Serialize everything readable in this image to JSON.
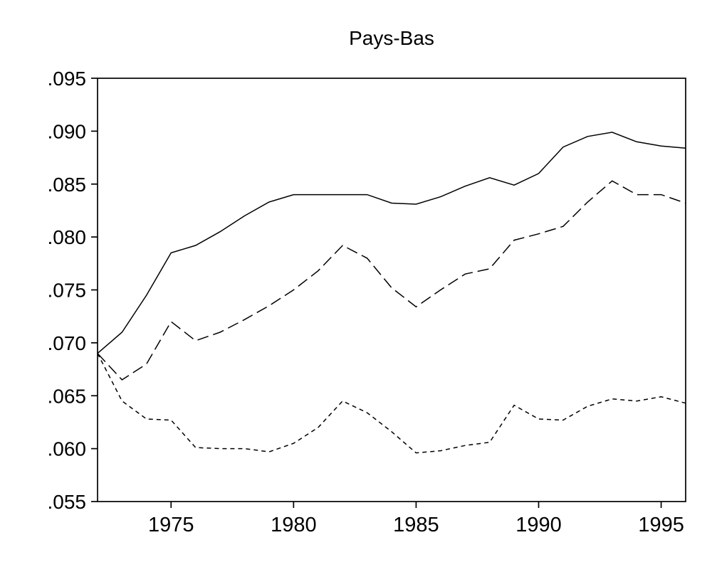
{
  "chart": {
    "title": "Pays-Bas",
    "background_color": "#ffffff"
  },
  "chart_data": {
    "type": "line",
    "title": "Pays-Bas",
    "xlabel": "",
    "ylabel": "",
    "grid": false,
    "legend": null,
    "xlim": [
      1972,
      1996
    ],
    "ylim": [
      0.055,
      0.095
    ],
    "axis_color": "#000000",
    "line_color": "#000000",
    "x_ticks": [
      1975,
      1980,
      1985,
      1990,
      1995
    ],
    "x_tick_labels": [
      "1975",
      "1980",
      "1985",
      "1990",
      "1995"
    ],
    "y_ticks": [
      0.095,
      0.09,
      0.085,
      0.08,
      0.075,
      0.07,
      0.065,
      0.06,
      0.055
    ],
    "y_tick_labels": [
      ".095",
      ".090",
      ".085",
      ".080",
      ".075",
      ".070",
      ".065",
      ".060",
      ".055"
    ],
    "x": [
      1972,
      1973,
      1974,
      1975,
      1976,
      1977,
      1978,
      1979,
      1980,
      1981,
      1982,
      1983,
      1984,
      1985,
      1986,
      1987,
      1988,
      1989,
      1990,
      1991,
      1992,
      1993,
      1994,
      1995,
      1996
    ],
    "series": [
      {
        "name": "upper-solid",
        "style": "solid",
        "values": [
          0.069,
          0.071,
          0.0745,
          0.0785,
          0.0792,
          0.0805,
          0.082,
          0.0833,
          0.084,
          0.084,
          0.084,
          0.084,
          0.0832,
          0.0831,
          0.0838,
          0.0848,
          0.0856,
          0.0849,
          0.086,
          0.0885,
          0.0895,
          0.0899,
          0.089,
          0.0886,
          0.0884
        ]
      },
      {
        "name": "middle-long-dash",
        "style": "long-dash",
        "values": [
          0.069,
          0.0665,
          0.068,
          0.072,
          0.0702,
          0.071,
          0.0722,
          0.0735,
          0.075,
          0.0768,
          0.0792,
          0.078,
          0.0752,
          0.0734,
          0.075,
          0.0765,
          0.077,
          0.0797,
          0.0803,
          0.081,
          0.0833,
          0.0853,
          0.084,
          0.084,
          0.0832
        ]
      },
      {
        "name": "lower-short-dash",
        "style": "short-dash",
        "values": [
          0.069,
          0.0645,
          0.0628,
          0.0627,
          0.0601,
          0.06,
          0.06,
          0.0597,
          0.0605,
          0.062,
          0.0645,
          0.0634,
          0.0616,
          0.0596,
          0.0598,
          0.0603,
          0.0606,
          0.0641,
          0.0628,
          0.0627,
          0.064,
          0.0647,
          0.0645,
          0.0649,
          0.0643
        ]
      }
    ]
  }
}
